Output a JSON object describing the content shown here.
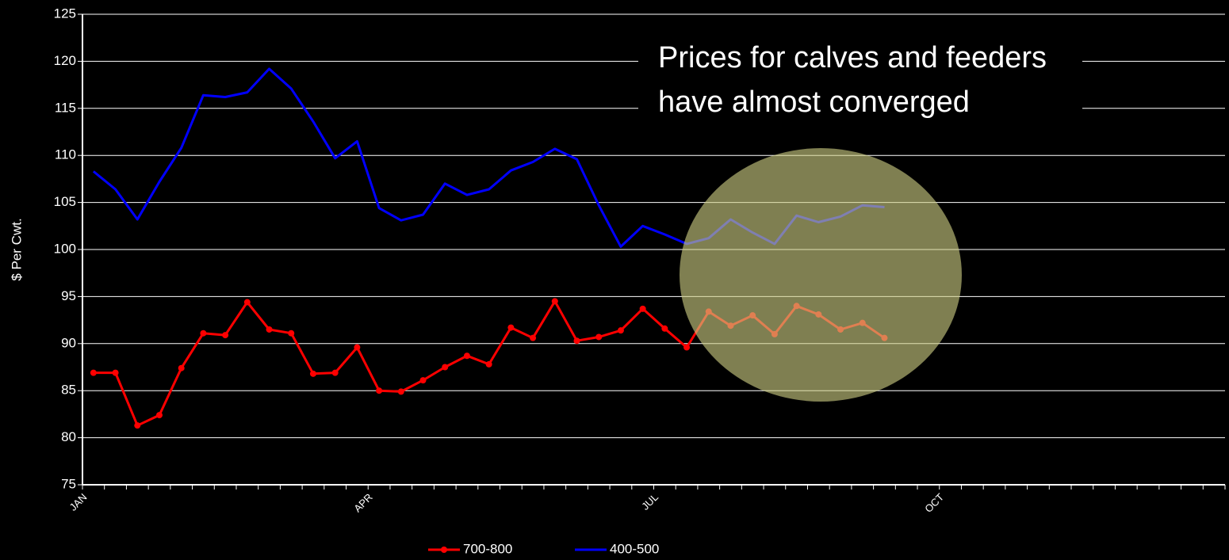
{
  "chart_data": {
    "type": "line",
    "ylabel": "$ Per Cwt.",
    "annotation": [
      "Prices for calves and feeders",
      "have almost converged"
    ],
    "categories": [
      "JAN",
      null,
      null,
      null,
      null,
      null,
      null,
      null,
      null,
      null,
      null,
      null,
      null,
      "APR",
      null,
      null,
      null,
      null,
      null,
      null,
      null,
      null,
      null,
      null,
      null,
      null,
      "JUL",
      null,
      null,
      null,
      null,
      null,
      null,
      null,
      null,
      null,
      null,
      null,
      null,
      "OCT",
      null,
      null,
      null,
      null,
      null,
      null,
      null,
      null,
      null,
      null,
      null,
      null
    ],
    "series": [
      {
        "name": "700-800",
        "color": "#ff0000",
        "marker": true,
        "values": [
          86.9,
          86.9,
          81.3,
          82.4,
          87.4,
          91.1,
          90.9,
          94.4,
          91.5,
          91.1,
          86.8,
          86.9,
          89.6,
          85.0,
          84.9,
          86.1,
          87.5,
          88.7,
          87.8,
          91.7,
          90.6,
          94.5,
          90.3,
          90.7,
          91.4,
          93.7,
          91.6,
          89.6,
          93.4,
          91.9,
          93.0,
          91.0,
          94.0,
          93.1,
          91.5,
          92.2,
          90.6,
          null,
          null,
          null,
          null,
          null,
          null,
          null,
          null,
          null,
          null,
          null,
          null,
          null,
          null,
          null
        ]
      },
      {
        "name": "400-500",
        "color": "#0000ff",
        "marker": false,
        "values": [
          108.3,
          106.4,
          103.2,
          107.2,
          110.8,
          116.4,
          116.2,
          116.7,
          119.2,
          117.1,
          113.6,
          109.7,
          111.5,
          104.4,
          103.1,
          103.7,
          107.0,
          105.8,
          106.4,
          108.4,
          109.3,
          110.7,
          109.6,
          104.7,
          100.3,
          102.5,
          101.6,
          100.6,
          101.2,
          103.2,
          101.8,
          100.6,
          103.6,
          102.9,
          103.5,
          104.7,
          104.5,
          null,
          null,
          null,
          null,
          null,
          null,
          null,
          null,
          null,
          null,
          null,
          null,
          null,
          null,
          null
        ]
      }
    ],
    "ylim": [
      75,
      125
    ],
    "yticks": [
      75,
      80,
      85,
      90,
      95,
      100,
      105,
      110,
      115,
      120,
      125
    ],
    "grid": true,
    "legend": "bottom"
  }
}
